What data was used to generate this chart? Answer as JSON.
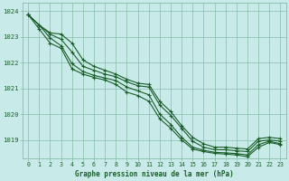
{
  "background_color": "#c8eae8",
  "grid_color": "#88bba8",
  "line_color": "#1a5e2a",
  "title": "Graphe pression niveau de la mer (hPa)",
  "xlim": [
    -0.5,
    23.5
  ],
  "ylim": [
    1018.3,
    1024.3
  ],
  "yticks": [
    1019,
    1020,
    1021,
    1022,
    1023,
    1024
  ],
  "xticks": [
    0,
    1,
    2,
    3,
    4,
    5,
    6,
    7,
    8,
    9,
    10,
    11,
    12,
    13,
    14,
    15,
    16,
    17,
    18,
    19,
    20,
    21,
    22,
    23
  ],
  "series": [
    [
      1023.85,
      1023.45,
      1023.15,
      1023.1,
      1022.75,
      1022.1,
      1021.85,
      1021.7,
      1021.55,
      1021.35,
      1021.2,
      1021.15,
      1020.5,
      1020.1,
      1019.55,
      1019.1,
      1018.85,
      1018.72,
      1018.72,
      1018.68,
      1018.65,
      1019.05,
      1019.1,
      1019.05
    ],
    [
      1023.85,
      1023.45,
      1023.1,
      1022.9,
      1022.4,
      1021.85,
      1021.7,
      1021.55,
      1021.45,
      1021.25,
      1021.1,
      1021.05,
      1020.35,
      1019.95,
      1019.45,
      1018.95,
      1018.72,
      1018.62,
      1018.62,
      1018.58,
      1018.55,
      1018.95,
      1019.0,
      1018.95
    ],
    [
      1023.85,
      1023.45,
      1022.95,
      1022.65,
      1021.95,
      1021.65,
      1021.5,
      1021.4,
      1021.3,
      1021.05,
      1020.9,
      1020.75,
      1020.0,
      1019.6,
      1019.1,
      1018.72,
      1018.6,
      1018.52,
      1018.5,
      1018.47,
      1018.42,
      1018.82,
      1018.95,
      1018.85
    ],
    [
      1023.85,
      1023.3,
      1022.75,
      1022.55,
      1021.75,
      1021.55,
      1021.42,
      1021.32,
      1021.15,
      1020.85,
      1020.72,
      1020.5,
      1019.82,
      1019.45,
      1019.0,
      1018.65,
      1018.55,
      1018.48,
      1018.45,
      1018.42,
      1018.35,
      1018.72,
      1018.9,
      1018.82
    ]
  ]
}
